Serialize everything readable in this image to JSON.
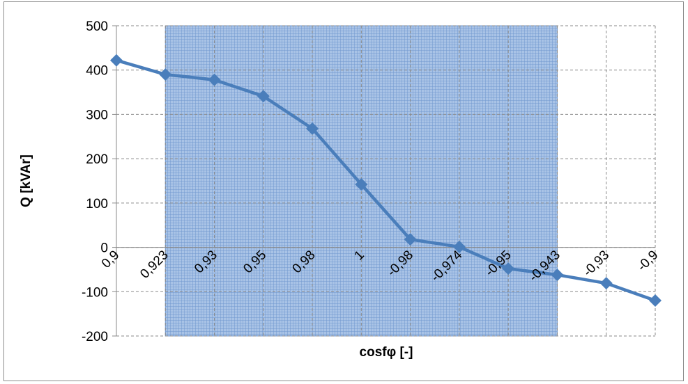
{
  "chart_data": {
    "type": "line",
    "xlabel": "cosfφ [-]",
    "ylabel": "Q [kVAr]",
    "categories": [
      "0,9",
      "0,923",
      "0,93",
      "0,95",
      "0,98",
      "1",
      "-0,98",
      "-0,974",
      "-0,95",
      "-0,943",
      "-0,93",
      "-0,9"
    ],
    "series": [
      {
        "values": [
          422,
          390,
          378,
          341,
          268,
          142,
          18,
          1,
          -48,
          -62,
          -81,
          -120
        ]
      }
    ],
    "ylim": [
      -200,
      500
    ],
    "yticks": [
      "500",
      "400",
      "300",
      "200",
      "100",
      "0",
      "-100",
      "-200"
    ],
    "grid": true,
    "line_color": "#4a7ebb",
    "highlight_region": {
      "from_index": 1,
      "to_index": 9,
      "color": "#7ea6dc"
    }
  }
}
